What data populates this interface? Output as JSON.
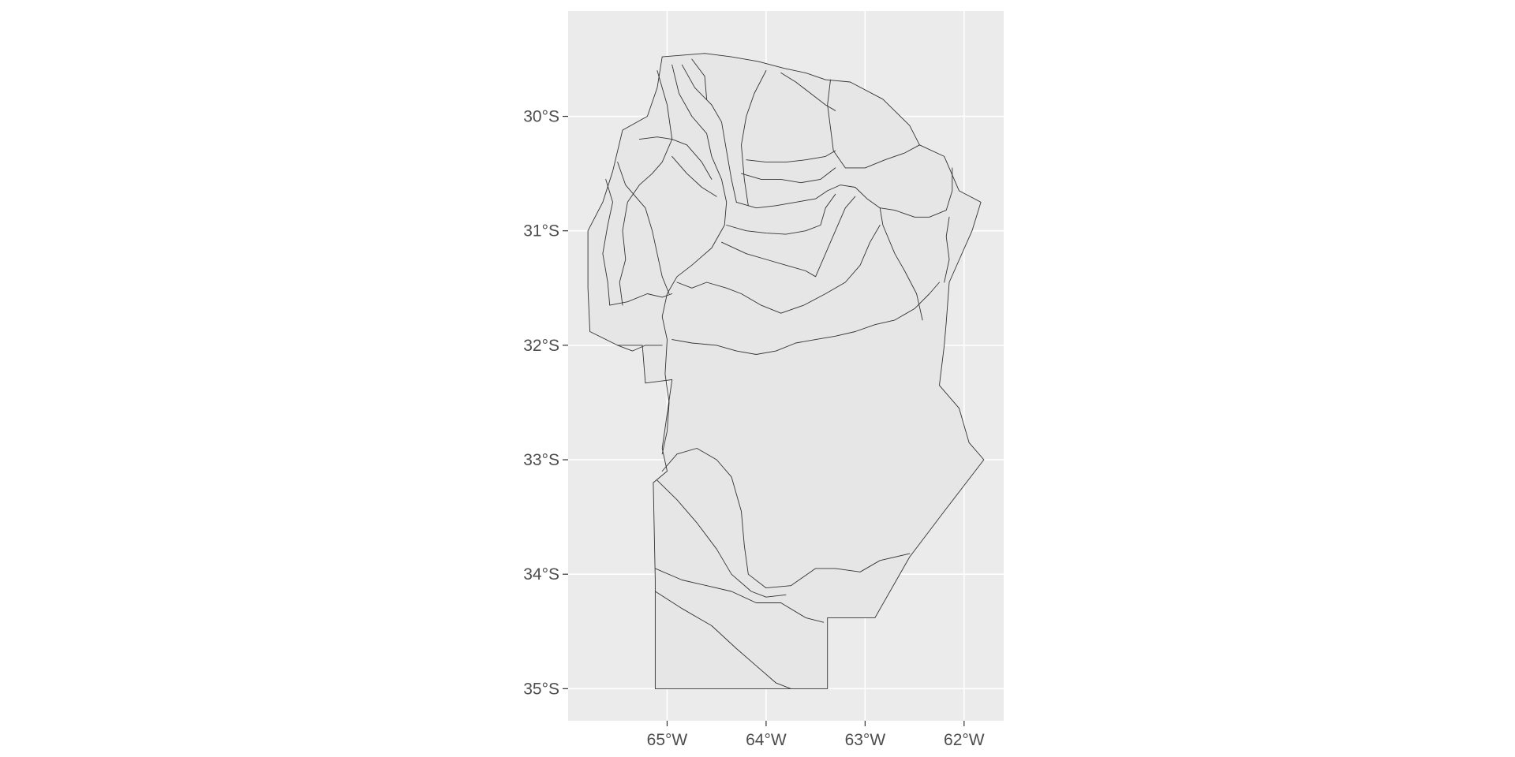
{
  "map": {
    "lon_range": [
      -66.0,
      -61.6
    ],
    "lat_range": [
      -35.28,
      -29.08
    ],
    "lon_ticks": [
      {
        "value": -65,
        "label": "65°W"
      },
      {
        "value": -64,
        "label": "64°W"
      },
      {
        "value": -63,
        "label": "63°W"
      },
      {
        "value": -62,
        "label": "62°W"
      }
    ],
    "lat_ticks": [
      {
        "value": -30,
        "label": "30°S"
      },
      {
        "value": -31,
        "label": "31°S"
      },
      {
        "value": -32,
        "label": "32°S"
      },
      {
        "value": -33,
        "label": "33°S"
      },
      {
        "value": -34,
        "label": "34°S"
      },
      {
        "value": -35,
        "label": "35°S"
      }
    ],
    "outline": [
      [
        -65.05,
        -29.48
      ],
      [
        -64.62,
        -29.45
      ],
      [
        -64.35,
        -29.48
      ],
      [
        -64.08,
        -29.52
      ],
      [
        -63.82,
        -29.58
      ],
      [
        -63.6,
        -29.62
      ],
      [
        -63.4,
        -29.68
      ],
      [
        -63.15,
        -29.7
      ],
      [
        -62.82,
        -29.85
      ],
      [
        -62.55,
        -30.08
      ],
      [
        -62.45,
        -30.25
      ],
      [
        -62.2,
        -30.35
      ],
      [
        -62.05,
        -30.65
      ],
      [
        -61.83,
        -30.75
      ],
      [
        -61.92,
        -31.0
      ],
      [
        -62.15,
        -31.45
      ],
      [
        -62.18,
        -31.8
      ],
      [
        -62.2,
        -32.0
      ],
      [
        -62.25,
        -32.35
      ],
      [
        -62.05,
        -32.55
      ],
      [
        -61.95,
        -32.85
      ],
      [
        -61.8,
        -33.0
      ],
      [
        -62.2,
        -33.45
      ],
      [
        -62.55,
        -33.85
      ],
      [
        -62.9,
        -34.38
      ],
      [
        -63.38,
        -34.38
      ],
      [
        -63.38,
        -35.0
      ],
      [
        -64.03,
        -35.0
      ],
      [
        -65.12,
        -35.0
      ],
      [
        -65.12,
        -34.05
      ],
      [
        -65.14,
        -33.2
      ],
      [
        -65.0,
        -33.1
      ],
      [
        -65.05,
        -32.9
      ],
      [
        -65.0,
        -32.6
      ],
      [
        -64.95,
        -32.3
      ],
      [
        -65.22,
        -32.33
      ],
      [
        -65.25,
        -32.0
      ],
      [
        -65.35,
        -32.0
      ],
      [
        -65.5,
        -32.0
      ],
      [
        -65.78,
        -31.88
      ],
      [
        -65.8,
        -31.5
      ],
      [
        -65.8,
        -31.0
      ],
      [
        -65.65,
        -30.75
      ],
      [
        -65.55,
        -30.48
      ],
      [
        -65.45,
        -30.12
      ],
      [
        -65.2,
        -30.0
      ],
      [
        -65.1,
        -29.75
      ]
    ],
    "boundaries": [
      [
        [
          -65.1,
          -29.6
        ],
        [
          -65.0,
          -29.9
        ],
        [
          -64.95,
          -30.2
        ],
        [
          -65.05,
          -30.4
        ],
        [
          -65.15,
          -30.5
        ],
        [
          -65.28,
          -30.6
        ],
        [
          -65.4,
          -30.75
        ],
        [
          -65.45,
          -31.0
        ],
        [
          -65.42,
          -31.25
        ],
        [
          -65.48,
          -31.45
        ],
        [
          -65.45,
          -31.65
        ]
      ],
      [
        [
          -65.5,
          -30.4
        ],
        [
          -65.42,
          -30.6
        ],
        [
          -65.3,
          -30.72
        ],
        [
          -65.22,
          -30.8
        ],
        [
          -65.15,
          -31.0
        ],
        [
          -65.1,
          -31.2
        ],
        [
          -65.05,
          -31.4
        ],
        [
          -64.98,
          -31.55
        ]
      ],
      [
        [
          -65.62,
          -30.55
        ],
        [
          -65.55,
          -30.75
        ],
        [
          -65.6,
          -30.95
        ],
        [
          -65.65,
          -31.2
        ],
        [
          -65.6,
          -31.45
        ],
        [
          -65.58,
          -31.65
        ]
      ],
      [
        [
          -65.58,
          -31.65
        ],
        [
          -65.4,
          -31.62
        ],
        [
          -65.2,
          -31.55
        ],
        [
          -65.05,
          -31.58
        ],
        [
          -64.95,
          -31.55
        ]
      ],
      [
        [
          -64.95,
          -29.55
        ],
        [
          -64.88,
          -29.8
        ],
        [
          -64.75,
          -30.0
        ],
        [
          -64.6,
          -30.15
        ],
        [
          -64.55,
          -30.35
        ],
        [
          -64.45,
          -30.55
        ],
        [
          -64.4,
          -30.75
        ],
        [
          -64.42,
          -30.95
        ],
        [
          -64.55,
          -31.15
        ],
        [
          -64.75,
          -31.3
        ],
        [
          -64.9,
          -31.4
        ],
        [
          -65.0,
          -31.55
        ],
        [
          -65.05,
          -31.75
        ],
        [
          -65.0,
          -31.95
        ],
        [
          -65.02,
          -32.25
        ],
        [
          -64.98,
          -32.5
        ],
        [
          -65.0,
          -32.75
        ],
        [
          -65.05,
          -32.95
        ]
      ],
      [
        [
          -64.85,
          -29.55
        ],
        [
          -64.72,
          -29.75
        ],
        [
          -64.55,
          -29.9
        ],
        [
          -64.45,
          -30.05
        ],
        [
          -64.4,
          -30.3
        ],
        [
          -64.35,
          -30.55
        ],
        [
          -64.3,
          -30.75
        ]
      ],
      [
        [
          -64.75,
          -29.5
        ],
        [
          -64.62,
          -29.65
        ],
        [
          -64.6,
          -29.85
        ]
      ],
      [
        [
          -64.0,
          -29.6
        ],
        [
          -64.12,
          -29.8
        ],
        [
          -64.2,
          -30.0
        ],
        [
          -64.25,
          -30.25
        ],
        [
          -64.22,
          -30.55
        ],
        [
          -64.18,
          -30.78
        ]
      ],
      [
        [
          -63.85,
          -29.62
        ],
        [
          -63.7,
          -29.7
        ],
        [
          -63.55,
          -29.8
        ],
        [
          -63.4,
          -29.9
        ],
        [
          -63.3,
          -29.95
        ]
      ],
      [
        [
          -63.35,
          -29.68
        ],
        [
          -63.38,
          -29.9
        ],
        [
          -63.35,
          -30.1
        ],
        [
          -63.32,
          -30.3
        ],
        [
          -63.2,
          -30.45
        ],
        [
          -63.0,
          -30.45
        ],
        [
          -62.8,
          -30.38
        ],
        [
          -62.6,
          -30.32
        ],
        [
          -62.45,
          -30.25
        ]
      ],
      [
        [
          -65.28,
          -30.2
        ],
        [
          -65.1,
          -30.18
        ],
        [
          -64.95,
          -30.2
        ],
        [
          -64.8,
          -30.25
        ],
        [
          -64.65,
          -30.4
        ],
        [
          -64.55,
          -30.55
        ]
      ],
      [
        [
          -64.95,
          -30.35
        ],
        [
          -64.8,
          -30.5
        ],
        [
          -64.65,
          -30.62
        ],
        [
          -64.5,
          -30.7
        ]
      ],
      [
        [
          -64.2,
          -30.38
        ],
        [
          -64.0,
          -30.4
        ],
        [
          -63.8,
          -30.4
        ],
        [
          -63.6,
          -30.38
        ],
        [
          -63.4,
          -30.35
        ],
        [
          -63.3,
          -30.3
        ]
      ],
      [
        [
          -64.25,
          -30.5
        ],
        [
          -64.05,
          -30.55
        ],
        [
          -63.85,
          -30.55
        ],
        [
          -63.65,
          -30.58
        ],
        [
          -63.45,
          -30.55
        ],
        [
          -63.3,
          -30.45
        ]
      ],
      [
        [
          -64.3,
          -30.75
        ],
        [
          -64.1,
          -30.8
        ],
        [
          -63.9,
          -30.78
        ],
        [
          -63.7,
          -30.75
        ],
        [
          -63.5,
          -30.72
        ],
        [
          -63.38,
          -30.65
        ],
        [
          -63.25,
          -30.6
        ],
        [
          -63.1,
          -30.62
        ],
        [
          -62.98,
          -30.72
        ],
        [
          -62.85,
          -30.8
        ],
        [
          -62.82,
          -30.95
        ],
        [
          -62.7,
          -31.2
        ],
        [
          -62.6,
          -31.35
        ],
        [
          -62.48,
          -31.55
        ],
        [
          -62.42,
          -31.78
        ]
      ],
      [
        [
          -64.4,
          -30.95
        ],
        [
          -64.2,
          -31.0
        ],
        [
          -64.0,
          -31.02
        ],
        [
          -63.8,
          -31.03
        ],
        [
          -63.6,
          -31.0
        ],
        [
          -63.45,
          -30.95
        ],
        [
          -63.4,
          -30.8
        ],
        [
          -63.3,
          -30.68
        ]
      ],
      [
        [
          -64.45,
          -31.1
        ],
        [
          -64.2,
          -31.2
        ],
        [
          -64.0,
          -31.25
        ],
        [
          -63.8,
          -31.3
        ],
        [
          -63.6,
          -31.35
        ],
        [
          -63.5,
          -31.4
        ],
        [
          -63.4,
          -31.2
        ],
        [
          -63.3,
          -31.0
        ],
        [
          -63.2,
          -30.8
        ],
        [
          -63.1,
          -30.7
        ]
      ],
      [
        [
          -64.9,
          -31.45
        ],
        [
          -64.75,
          -31.5
        ],
        [
          -64.6,
          -31.45
        ],
        [
          -64.4,
          -31.5
        ],
        [
          -64.25,
          -31.55
        ],
        [
          -64.05,
          -31.65
        ],
        [
          -63.85,
          -31.72
        ],
        [
          -63.62,
          -31.65
        ],
        [
          -63.4,
          -31.55
        ],
        [
          -63.2,
          -31.45
        ],
        [
          -63.05,
          -31.3
        ],
        [
          -62.95,
          -31.1
        ],
        [
          -62.85,
          -30.95
        ]
      ],
      [
        [
          -64.95,
          -31.95
        ],
        [
          -64.75,
          -31.98
        ],
        [
          -64.5,
          -32.0
        ],
        [
          -64.3,
          -32.05
        ],
        [
          -64.1,
          -32.08
        ],
        [
          -63.9,
          -32.05
        ],
        [
          -63.7,
          -31.98
        ],
        [
          -63.5,
          -31.95
        ],
        [
          -63.3,
          -31.92
        ],
        [
          -63.1,
          -31.88
        ],
        [
          -62.9,
          -31.82
        ],
        [
          -62.7,
          -31.78
        ],
        [
          -62.5,
          -31.68
        ],
        [
          -62.35,
          -31.55
        ],
        [
          -62.25,
          -31.45
        ]
      ],
      [
        [
          -62.85,
          -30.8
        ],
        [
          -62.7,
          -30.82
        ],
        [
          -62.5,
          -30.88
        ],
        [
          -62.35,
          -30.88
        ],
        [
          -62.18,
          -30.82
        ],
        [
          -62.12,
          -30.65
        ],
        [
          -62.12,
          -30.45
        ]
      ],
      [
        [
          -62.15,
          -30.88
        ],
        [
          -62.18,
          -31.05
        ],
        [
          -62.15,
          -31.25
        ],
        [
          -62.2,
          -31.45
        ]
      ],
      [
        [
          -65.5,
          -32.0
        ],
        [
          -65.35,
          -32.05
        ],
        [
          -65.22,
          -32.0
        ],
        [
          -65.05,
          -32.0
        ]
      ],
      [
        [
          -65.05,
          -33.1
        ],
        [
          -64.9,
          -32.95
        ],
        [
          -64.7,
          -32.9
        ],
        [
          -64.5,
          -33.0
        ],
        [
          -64.35,
          -33.15
        ],
        [
          -64.25,
          -33.45
        ],
        [
          -64.22,
          -33.75
        ],
        [
          -64.18,
          -34.0
        ],
        [
          -64.0,
          -34.12
        ],
        [
          -63.75,
          -34.1
        ],
        [
          -63.5,
          -33.95
        ],
        [
          -63.3,
          -33.95
        ],
        [
          -63.05,
          -33.98
        ],
        [
          -62.85,
          -33.88
        ],
        [
          -62.55,
          -33.82
        ]
      ],
      [
        [
          -65.1,
          -33.18
        ],
        [
          -64.9,
          -33.35
        ],
        [
          -64.7,
          -33.55
        ],
        [
          -64.5,
          -33.78
        ],
        [
          -64.35,
          -34.0
        ],
        [
          -64.15,
          -34.15
        ],
        [
          -64.0,
          -34.2
        ],
        [
          -63.8,
          -34.18
        ]
      ],
      [
        [
          -65.12,
          -33.95
        ],
        [
          -64.85,
          -34.05
        ],
        [
          -64.6,
          -34.1
        ],
        [
          -64.35,
          -34.15
        ],
        [
          -64.1,
          -34.25
        ],
        [
          -63.85,
          -34.25
        ],
        [
          -63.6,
          -34.38
        ],
        [
          -63.42,
          -34.42
        ]
      ],
      [
        [
          -65.12,
          -34.15
        ],
        [
          -64.85,
          -34.3
        ],
        [
          -64.55,
          -34.45
        ],
        [
          -64.3,
          -34.65
        ],
        [
          -64.1,
          -34.8
        ],
        [
          -63.9,
          -34.95
        ],
        [
          -63.75,
          -35.0
        ]
      ]
    ]
  }
}
